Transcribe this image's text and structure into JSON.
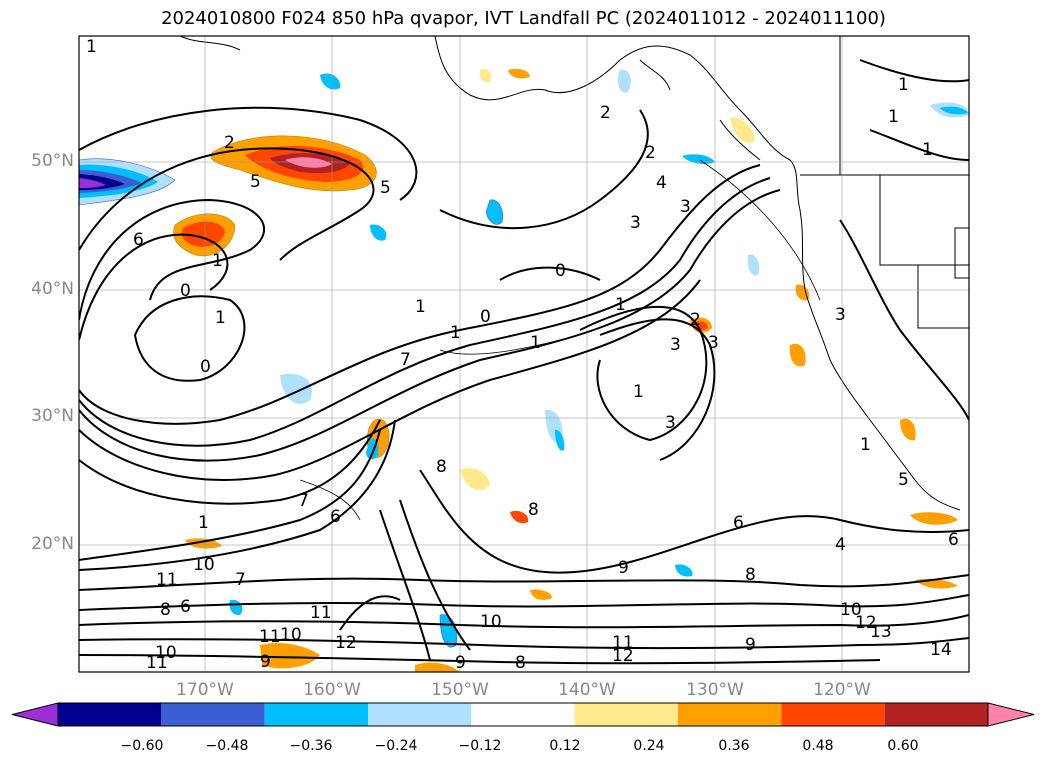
{
  "title": "2024010800 F024 850 hPa qvapor, IVT Landfall PC (2024011012 - 2024011100)",
  "lat_labels": [
    "50°N",
    "40°N",
    "30°N",
    "20°N"
  ],
  "lon_labels": [
    "170°W",
    "160°W",
    "150°W",
    "140°W",
    "130°W",
    "120°W"
  ],
  "colorbar": {
    "colors": [
      "#9b30d9",
      "#000090",
      "#3b5fd3",
      "#00bfff",
      "#b0e0ff",
      "#ffffff",
      "#ffe98a",
      "#ffa000",
      "#ff4500",
      "#b22222",
      "#ff82ab"
    ],
    "ticks": [
      "−0.60",
      "−0.48",
      "−0.36",
      "−0.24",
      "−0.12",
      "0.12",
      "0.24",
      "0.36",
      "0.48",
      "0.60"
    ]
  },
  "contour_labels": [
    "1",
    "2",
    "5",
    "5",
    "6",
    "1",
    "0",
    "1",
    "0",
    "0",
    "1",
    "0",
    "1",
    "1",
    "2",
    "2",
    "4",
    "3",
    "3",
    "1",
    "2",
    "3",
    "3",
    "1",
    "3",
    "7",
    "8",
    "8",
    "6",
    "7",
    "6",
    "1",
    "9",
    "10",
    "11",
    "8",
    "8",
    "10",
    "11",
    "9",
    "10",
    "10",
    "11",
    "11",
    "12",
    "9",
    "8",
    "9",
    "12",
    "11",
    "7",
    "6",
    "4",
    "10",
    "12",
    "13",
    "14",
    "6",
    "5",
    "1",
    "1",
    "1",
    "1",
    "3"
  ]
}
